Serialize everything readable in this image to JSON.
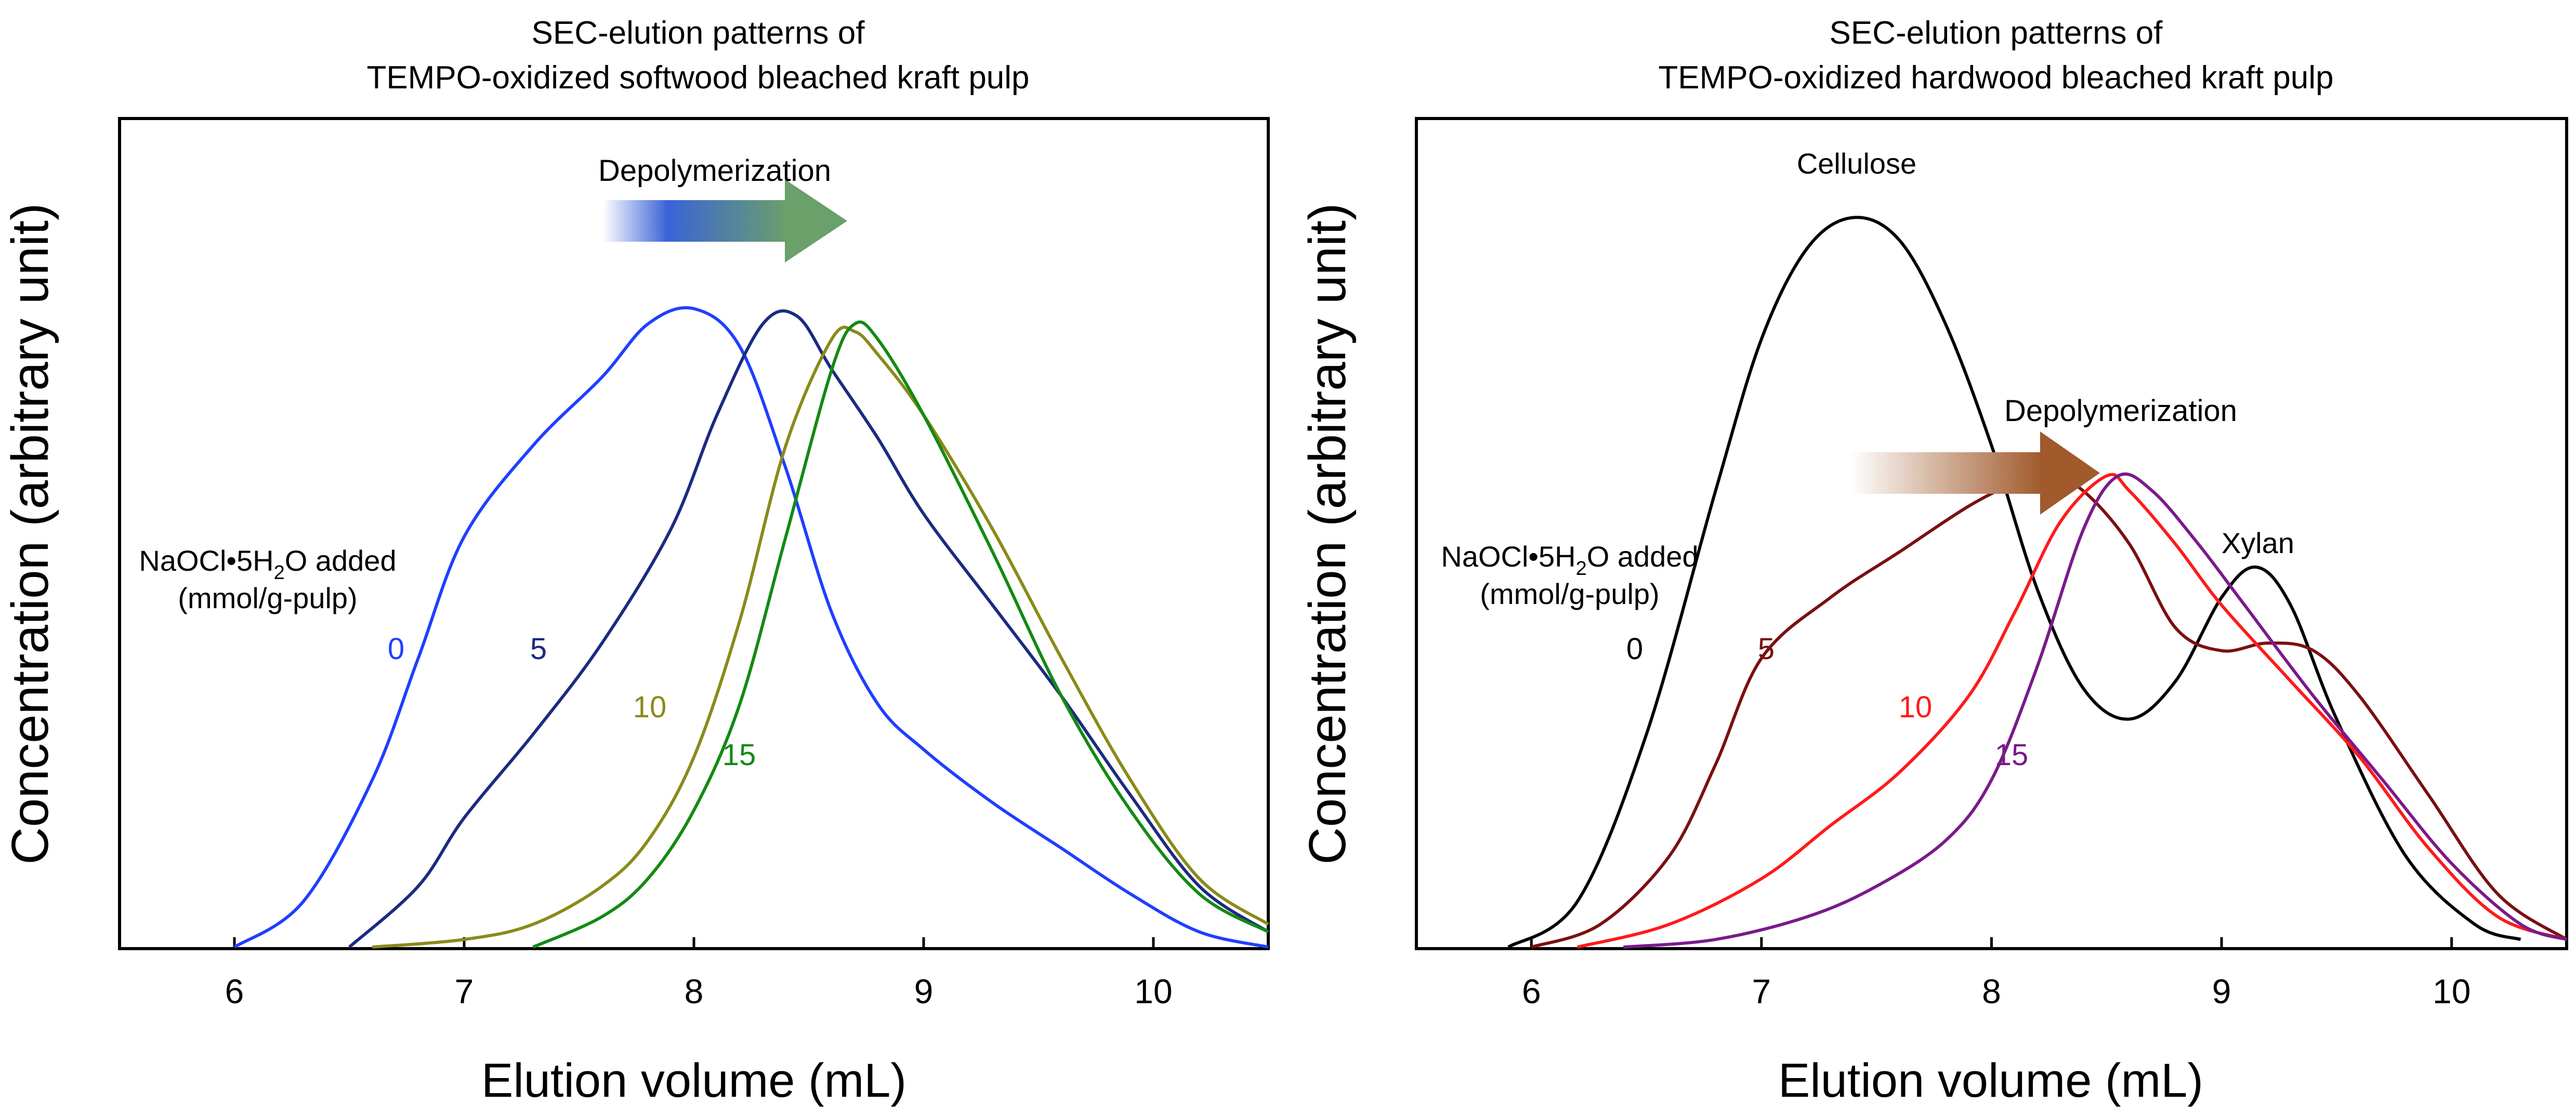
{
  "chart_data": [
    {
      "type": "line",
      "title_lines": [
        "SEC-elution patterns of",
        "TEMPO-oxidized softwood bleached kraft pulp"
      ],
      "xlabel": "Elution volume (mL)",
      "ylabel": "Concentration (arbitrary unit)",
      "xlim": [
        5.5,
        10.5
      ],
      "ylim": [
        0,
        1.0
      ],
      "xticks": [
        6,
        7,
        8,
        9,
        10
      ],
      "grid": false,
      "annotation": "Depolymerization",
      "arrow_color": "#6aa06a",
      "legend_title": "NaOCl•5H",
      "legend_sub": "2",
      "legend_title_end": "O added",
      "legend_unit": "(mmol/g-pulp)",
      "series": [
        {
          "name": "0",
          "color": "#1f3fff",
          "x": [
            6.0,
            6.3,
            6.6,
            6.8,
            7.0,
            7.3,
            7.6,
            7.8,
            8.0,
            8.2,
            8.4,
            8.6,
            8.8,
            9.0,
            9.3,
            9.6,
            9.9,
            10.2,
            10.5
          ],
          "y": [
            0.0,
            0.06,
            0.22,
            0.38,
            0.54,
            0.66,
            0.75,
            0.82,
            0.84,
            0.79,
            0.63,
            0.44,
            0.32,
            0.26,
            0.19,
            0.13,
            0.07,
            0.02,
            0.0
          ]
        },
        {
          "name": "5",
          "color": "#1c2a80",
          "x": [
            6.5,
            6.8,
            7.0,
            7.3,
            7.6,
            7.9,
            8.1,
            8.3,
            8.45,
            8.6,
            8.8,
            9.0,
            9.3,
            9.6,
            9.9,
            10.2,
            10.5
          ],
          "y": [
            0.0,
            0.08,
            0.17,
            0.28,
            0.4,
            0.55,
            0.7,
            0.82,
            0.83,
            0.76,
            0.67,
            0.57,
            0.45,
            0.33,
            0.2,
            0.08,
            0.02
          ]
        },
        {
          "name": "10",
          "color": "#8a8a1a",
          "x": [
            6.6,
            7.0,
            7.3,
            7.6,
            7.8,
            8.0,
            8.2,
            8.4,
            8.6,
            8.7,
            8.8,
            9.0,
            9.3,
            9.6,
            9.9,
            10.2,
            10.5
          ],
          "y": [
            0.0,
            0.01,
            0.03,
            0.08,
            0.14,
            0.25,
            0.43,
            0.66,
            0.8,
            0.81,
            0.78,
            0.7,
            0.55,
            0.38,
            0.22,
            0.09,
            0.03
          ]
        },
        {
          "name": "15",
          "color": "#138a13",
          "x": [
            7.3,
            7.6,
            7.8,
            8.0,
            8.2,
            8.4,
            8.6,
            8.7,
            8.8,
            9.0,
            9.3,
            9.6,
            9.9,
            10.2,
            10.5
          ],
          "y": [
            0.0,
            0.04,
            0.09,
            0.18,
            0.32,
            0.54,
            0.76,
            0.82,
            0.8,
            0.7,
            0.52,
            0.33,
            0.18,
            0.07,
            0.02
          ]
        }
      ]
    },
    {
      "type": "line",
      "title_lines": [
        "SEC-elution patterns of",
        "TEMPO-oxidized hardwood bleached kraft pulp"
      ],
      "xlabel": "Elution volume (mL)",
      "ylabel": "Concentration (arbitrary unit)",
      "xlim": [
        5.5,
        10.5
      ],
      "ylim": [
        0,
        1.0
      ],
      "xticks": [
        6,
        7,
        8,
        9,
        10
      ],
      "grid": false,
      "annotation": "Depolymerization",
      "arrow_color": "#a05a2c",
      "legend_title": "NaOCl•5H",
      "legend_sub": "2",
      "legend_title_end": "O added",
      "legend_unit": "(mmol/g-pulp)",
      "peak_labels": [
        "Cellulose",
        "Xylan"
      ],
      "series": [
        {
          "name": "0",
          "color": "#000000",
          "x": [
            5.9,
            6.2,
            6.5,
            6.8,
            7.0,
            7.2,
            7.4,
            7.6,
            7.8,
            8.0,
            8.2,
            8.4,
            8.6,
            8.8,
            9.0,
            9.15,
            9.3,
            9.5,
            9.8,
            10.1,
            10.3
          ],
          "y": [
            0.0,
            0.06,
            0.28,
            0.6,
            0.8,
            0.92,
            0.96,
            0.93,
            0.82,
            0.66,
            0.47,
            0.34,
            0.3,
            0.35,
            0.46,
            0.5,
            0.45,
            0.3,
            0.12,
            0.03,
            0.01
          ]
        },
        {
          "name": "5",
          "color": "#7a1010",
          "x": [
            6.0,
            6.3,
            6.6,
            6.8,
            7.0,
            7.3,
            7.6,
            7.9,
            8.1,
            8.25,
            8.4,
            8.6,
            8.8,
            9.0,
            9.2,
            9.4,
            9.6,
            9.9,
            10.2,
            10.5
          ],
          "y": [
            0.0,
            0.03,
            0.12,
            0.24,
            0.38,
            0.46,
            0.52,
            0.58,
            0.61,
            0.62,
            0.6,
            0.53,
            0.42,
            0.39,
            0.4,
            0.39,
            0.33,
            0.2,
            0.07,
            0.01
          ]
        },
        {
          "name": "10",
          "color": "#ff1a1a",
          "x": [
            6.2,
            6.6,
            7.0,
            7.3,
            7.6,
            7.9,
            8.1,
            8.3,
            8.5,
            8.6,
            8.8,
            9.0,
            9.3,
            9.6,
            9.9,
            10.2,
            10.5
          ],
          "y": [
            0.0,
            0.03,
            0.09,
            0.16,
            0.23,
            0.33,
            0.44,
            0.56,
            0.62,
            0.6,
            0.53,
            0.45,
            0.35,
            0.25,
            0.13,
            0.04,
            0.01
          ]
        },
        {
          "name": "15",
          "color": "#7a1a8a",
          "x": [
            6.4,
            6.8,
            7.2,
            7.5,
            7.8,
            8.0,
            8.2,
            8.4,
            8.55,
            8.7,
            8.9,
            9.1,
            9.4,
            9.7,
            10.0,
            10.3,
            10.5
          ],
          "y": [
            0.0,
            0.01,
            0.04,
            0.08,
            0.14,
            0.22,
            0.37,
            0.55,
            0.62,
            0.6,
            0.53,
            0.45,
            0.33,
            0.22,
            0.11,
            0.03,
            0.01
          ]
        }
      ]
    }
  ]
}
